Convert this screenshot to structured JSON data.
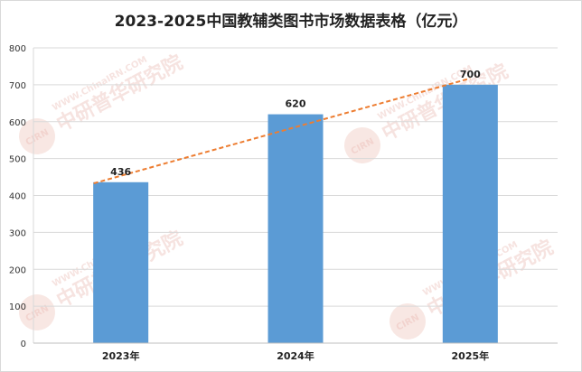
{
  "chart_data": {
    "type": "bar",
    "title": "2023-2025中国教辅类图书市场数据表格（亿元）",
    "categories": [
      "2023年",
      "2024年",
      "2025年"
    ],
    "values": [
      436,
      620,
      700
    ],
    "ylim": [
      0,
      800
    ],
    "yticks": [
      0,
      100,
      200,
      300,
      400,
      500,
      600,
      700,
      800
    ],
    "grid": true,
    "trendline": "linear",
    "colors": {
      "bar": "#5b9bd5",
      "trend": "#ed7d31",
      "grid": "#d9d9d9"
    }
  },
  "watermark": {
    "text": "中研普华研究院",
    "url": "WWW.ChinaIRN.COM",
    "logo": "CIRN"
  }
}
